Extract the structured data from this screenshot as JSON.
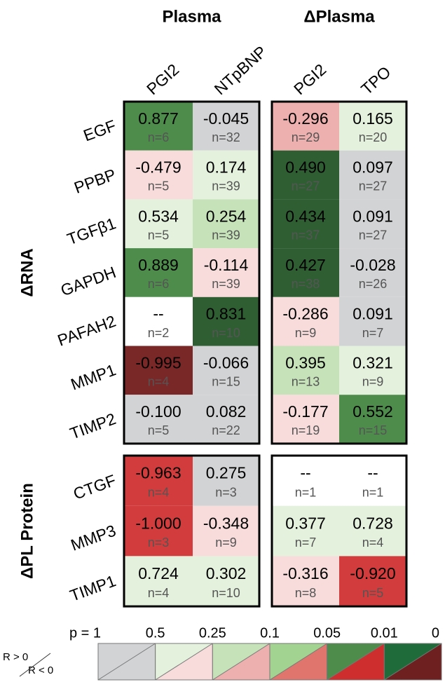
{
  "column_groups": [
    {
      "label": "Plasma",
      "columns": [
        "PGI2",
        "NTpBNP"
      ]
    },
    {
      "label": "ΔPlasma",
      "columns": [
        "PGI2",
        "TPO"
      ]
    }
  ],
  "row_groups": [
    {
      "label": "ΔRNA",
      "rows": [
        {
          "label": "EGF",
          "cells": [
            {
              "r": "0.877",
              "n": "n=6",
              "color": "#4e8c4c"
            },
            {
              "r": "-0.045",
              "n": "n=32",
              "color": "#d2d3d5"
            },
            {
              "r": "-0.296",
              "n": "n=29",
              "color": "#eeb0ae"
            },
            {
              "r": "0.165",
              "n": "n=20",
              "color": "#e4f1dd"
            }
          ]
        },
        {
          "label": "PPBP",
          "cells": [
            {
              "r": "-0.479",
              "n": "n=5",
              "color": "#f7dcdb"
            },
            {
              "r": "0.174",
              "n": "n=39",
              "color": "#e4f1dd"
            },
            {
              "r": "0.490",
              "n": "n=27",
              "color": "#2f5e33"
            },
            {
              "r": "0.097",
              "n": "n=27",
              "color": "#d2d3d5"
            }
          ]
        },
        {
          "label": "TGFβ1",
          "cells": [
            {
              "r": "0.534",
              "n": "n=5",
              "color": "#e4f1dd"
            },
            {
              "r": "0.254",
              "n": "n=39",
              "color": "#c6e2b9"
            },
            {
              "r": "0.434",
              "n": "n=37",
              "color": "#2f5e33"
            },
            {
              "r": "0.091",
              "n": "n=27",
              "color": "#d2d3d5"
            }
          ]
        },
        {
          "label": "GAPDH",
          "cells": [
            {
              "r": "0.889",
              "n": "n=6",
              "color": "#4e8c4c"
            },
            {
              "r": "-0.114",
              "n": "n=39",
              "color": "#f7dcdb"
            },
            {
              "r": "0.427",
              "n": "n=38",
              "color": "#2f5e33"
            },
            {
              "r": "-0.028",
              "n": "n=26",
              "color": "#d2d3d5"
            }
          ]
        },
        {
          "label": "PAFAH2",
          "cells": [
            {
              "r": "--",
              "n": "n=2",
              "color": "#ffffff"
            },
            {
              "r": "0.831",
              "n": "n=10",
              "color": "#2f5e33"
            },
            {
              "r": "-0.286",
              "n": "n=9",
              "color": "#f7dcdb"
            },
            {
              "r": "0.091",
              "n": "n=7",
              "color": "#d2d3d5"
            }
          ]
        },
        {
          "label": "MMP1",
          "cells": [
            {
              "r": "-0.995",
              "n": "n=4",
              "color": "#7a2727"
            },
            {
              "r": "-0.066",
              "n": "n=15",
              "color": "#d2d3d5"
            },
            {
              "r": "0.395",
              "n": "n=13",
              "color": "#c6e2b9"
            },
            {
              "r": "0.321",
              "n": "n=9",
              "color": "#e4f1dd"
            }
          ]
        },
        {
          "label": "TIMP2",
          "cells": [
            {
              "r": "-0.100",
              "n": "n=5",
              "color": "#d2d3d5"
            },
            {
              "r": "0.082",
              "n": "n=22",
              "color": "#d2d3d5"
            },
            {
              "r": "-0.177",
              "n": "n=19",
              "color": "#f7dcdb"
            },
            {
              "r": "0.552",
              "n": "n=15",
              "color": "#4e8c4c"
            }
          ]
        }
      ]
    },
    {
      "label": "ΔPL Protein",
      "rows": [
        {
          "label": "CTGF",
          "cells": [
            {
              "r": "-0.963",
              "n": "n=4",
              "color": "#d23c3c"
            },
            {
              "r": "0.275",
              "n": "n=3",
              "color": "#d2d3d5"
            },
            {
              "r": "--",
              "n": "n=1",
              "color": "#ffffff"
            },
            {
              "r": "--",
              "n": "n=1",
              "color": "#ffffff"
            }
          ]
        },
        {
          "label": "MMP3",
          "cells": [
            {
              "r": "-1.000",
              "n": "n=3",
              "color": "#d23c3c"
            },
            {
              "r": "-0.348",
              "n": "n=9",
              "color": "#f7dcdb"
            },
            {
              "r": "0.377",
              "n": "n=7",
              "color": "#e4f1dd"
            },
            {
              "r": "0.728",
              "n": "n=4",
              "color": "#e4f1dd"
            }
          ]
        },
        {
          "label": "TIMP1",
          "cells": [
            {
              "r": "0.724",
              "n": "n=4",
              "color": "#e4f1dd"
            },
            {
              "r": "0.302",
              "n": "n=10",
              "color": "#e4f1dd"
            },
            {
              "r": "-0.316",
              "n": "n=8",
              "color": "#f7dcdb"
            },
            {
              "r": "-0.920",
              "n": "n=5",
              "color": "#d23c3c"
            }
          ]
        }
      ]
    }
  ],
  "legend": {
    "labels": [
      "p = 1",
      "0.5",
      "0.25",
      "0.1",
      "0.05",
      "0.01",
      "0"
    ],
    "positive": "R > 0",
    "negative": "R < 0",
    "colors": [
      [
        "#d2d3d5",
        "#d2d3d5"
      ],
      [
        "#e4f1dd",
        "#f7dcdb"
      ],
      [
        "#c6e2b9",
        "#eeb0ae"
      ],
      [
        "#a3d391",
        "#e0756e"
      ],
      [
        "#4e8c4c",
        "#cf2e2e"
      ],
      [
        "#1f6b3a",
        "#6e2020"
      ]
    ]
  }
}
